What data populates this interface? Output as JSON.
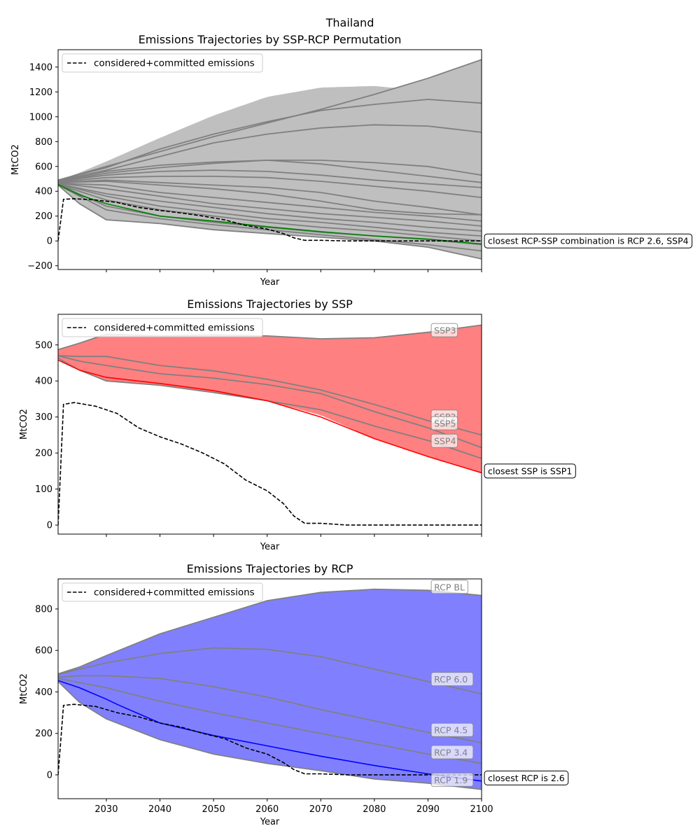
{
  "suptitle": "Thailand",
  "colors": {
    "gray_fill": "#bfbfbf",
    "ssp_fill": "#ff8080",
    "rcp_fill": "#8080ff",
    "gray_line": "#808080",
    "permutation_highlight": "#008000",
    "ssp_highlight": "#ff0000",
    "rcp_highlight": "#0000ff",
    "committed": "#000000"
  },
  "chart_data": [
    {
      "type": "line",
      "title": "Emissions Trajectories by SSP-RCP Permutation",
      "xlabel": "Year",
      "ylabel": "MtCO2",
      "xlim": [
        2021,
        2100
      ],
      "ylim": [
        -230,
        1540
      ],
      "yticks": [
        -200,
        0,
        200,
        400,
        600,
        800,
        1000,
        1200,
        1400
      ],
      "legend": {
        "label": "considered+committed emissions",
        "location": "upper-left"
      },
      "band": {
        "x": [
          2021,
          2025,
          2030,
          2040,
          2050,
          2060,
          2070,
          2080,
          2090,
          2100
        ],
        "upper": [
          485,
          550,
          640,
          830,
          1010,
          1160,
          1235,
          1248,
          1205,
          1110
        ],
        "upper_extended": [
          485,
          540,
          600,
          720,
          840,
          950,
          1060,
          1180,
          1310,
          1460
        ],
        "lower": [
          450,
          300,
          165,
          140,
          90,
          60,
          30,
          0,
          -50,
          -145
        ]
      },
      "series": [
        {
          "x": [
            2021,
            2030,
            2040,
            2050,
            2060,
            2070,
            2080,
            2090,
            2100
          ],
          "values": [
            490,
            600,
            720,
            840,
            950,
            1060,
            1180,
            1310,
            1460
          ]
        },
        {
          "x": [
            2021,
            2030,
            2040,
            2050,
            2060,
            2070,
            2080,
            2090,
            2100
          ],
          "values": [
            490,
            590,
            740,
            860,
            960,
            1050,
            1100,
            1140,
            1110
          ]
        },
        {
          "x": [
            2021,
            2030,
            2040,
            2050,
            2060,
            2070,
            2080,
            2090,
            2100
          ],
          "values": [
            485,
            570,
            680,
            790,
            860,
            910,
            935,
            925,
            875
          ]
        },
        {
          "x": [
            2021,
            2030,
            2040,
            2050,
            2060,
            2070,
            2080,
            2090,
            2100
          ],
          "values": [
            485,
            560,
            610,
            635,
            650,
            650,
            630,
            600,
            530
          ]
        },
        {
          "x": [
            2021,
            2030,
            2040,
            2050,
            2060,
            2070,
            2080,
            2090,
            2100
          ],
          "values": [
            480,
            545,
            590,
            625,
            650,
            620,
            570,
            520,
            470
          ]
        },
        {
          "x": [
            2021,
            2030,
            2040,
            2050,
            2060,
            2070,
            2080,
            2090,
            2100
          ],
          "values": [
            480,
            530,
            560,
            570,
            560,
            530,
            490,
            460,
            430
          ]
        },
        {
          "x": [
            2021,
            2030,
            2040,
            2050,
            2060,
            2070,
            2080,
            2090,
            2100
          ],
          "values": [
            475,
            510,
            520,
            520,
            510,
            480,
            440,
            400,
            350
          ]
        },
        {
          "x": [
            2021,
            2030,
            2040,
            2050,
            2060,
            2070,
            2080,
            2090,
            2100
          ],
          "values": [
            470,
            490,
            470,
            450,
            430,
            390,
            320,
            270,
            210
          ]
        },
        {
          "x": [
            2021,
            2030,
            2040,
            2050,
            2060,
            2070,
            2080,
            2090,
            2100
          ],
          "values": [
            470,
            480,
            450,
            420,
            380,
            320,
            250,
            220,
            210
          ]
        },
        {
          "x": [
            2021,
            2030,
            2040,
            2050,
            2060,
            2070,
            2080,
            2090,
            2100
          ],
          "values": [
            465,
            450,
            390,
            350,
            310,
            270,
            230,
            200,
            160
          ]
        },
        {
          "x": [
            2021,
            2030,
            2040,
            2050,
            2060,
            2070,
            2080,
            2090,
            2100
          ],
          "values": [
            465,
            420,
            360,
            300,
            260,
            220,
            190,
            160,
            120
          ]
        },
        {
          "x": [
            2021,
            2030,
            2040,
            2050,
            2060,
            2070,
            2080,
            2090,
            2100
          ],
          "values": [
            460,
            380,
            320,
            270,
            220,
            180,
            150,
            110,
            80
          ]
        },
        {
          "x": [
            2021,
            2030,
            2040,
            2050,
            2060,
            2070,
            2080,
            2090,
            2100
          ],
          "values": [
            460,
            360,
            280,
            230,
            180,
            150,
            110,
            70,
            40
          ]
        },
        {
          "x": [
            2021,
            2030,
            2040,
            2050,
            2060,
            2070,
            2080,
            2090,
            2100
          ],
          "values": [
            455,
            330,
            250,
            200,
            150,
            110,
            80,
            40,
            0
          ]
        },
        {
          "x": [
            2021,
            2030,
            2040,
            2050,
            2060,
            2070,
            2080,
            2090,
            2100
          ],
          "values": [
            455,
            280,
            200,
            150,
            110,
            70,
            40,
            10,
            -30
          ]
        },
        {
          "x": [
            2021,
            2030,
            2040,
            2050,
            2060,
            2070,
            2080,
            2090,
            2100
          ],
          "values": [
            450,
            250,
            180,
            130,
            90,
            50,
            10,
            -30,
            -80
          ]
        },
        {
          "x": [
            2021,
            2025,
            2030,
            2040,
            2050,
            2060,
            2070,
            2080,
            2090,
            2100
          ],
          "values": [
            450,
            300,
            170,
            140,
            90,
            60,
            30,
            0,
            -50,
            -145
          ]
        }
      ],
      "highlight": {
        "x": [
          2021,
          2025,
          2030,
          2040,
          2050,
          2060,
          2070,
          2080,
          2090,
          2100
        ],
        "values": [
          455,
          370,
          300,
          200,
          160,
          115,
          75,
          40,
          15,
          -25
        ]
      },
      "committed": {
        "x": [
          2021,
          2022,
          2024,
          2028,
          2032,
          2036,
          2040,
          2044,
          2048,
          2052,
          2056,
          2060,
          2063,
          2065,
          2067,
          2070,
          2075,
          2080,
          2100
        ],
        "values": [
          0,
          335,
          340,
          330,
          310,
          270,
          245,
          225,
          200,
          170,
          125,
          95,
          60,
          25,
          5,
          5,
          0,
          0,
          0
        ]
      },
      "annotations": [
        {
          "text": "closest RCP-SSP combination is RCP 2.6, SSP4",
          "x": 2100,
          "y": 0,
          "style": "callout"
        }
      ]
    },
    {
      "type": "line",
      "title": "Emissions Trajectories by SSP",
      "xlabel": "Year",
      "ylabel": "MtCO2",
      "xlim": [
        2021,
        2100
      ],
      "ylim": [
        -25,
        585
      ],
      "yticks": [
        0,
        100,
        200,
        300,
        400,
        500
      ],
      "legend": {
        "label": "considered+committed emissions",
        "location": "upper-left"
      },
      "band": {
        "x": [
          2021,
          2025,
          2030,
          2040,
          2050,
          2060,
          2070,
          2080,
          2090,
          2100
        ],
        "upper": [
          487,
          505,
          530,
          525,
          528,
          525,
          517,
          520,
          535,
          555
        ],
        "lower": [
          463,
          430,
          400,
          388,
          368,
          345,
          305,
          240,
          190,
          145
        ]
      },
      "series": [
        {
          "name": "SSP3",
          "x": [
            2021,
            2025,
            2030,
            2040,
            2050,
            2060,
            2070,
            2080,
            2090,
            2100
          ],
          "values": [
            487,
            505,
            530,
            525,
            528,
            525,
            517,
            520,
            535,
            555
          ]
        },
        {
          "name": "SSP2",
          "x": [
            2021,
            2025,
            2030,
            2040,
            2050,
            2060,
            2070,
            2080,
            2090,
            2100
          ],
          "values": [
            470,
            468,
            468,
            443,
            428,
            405,
            375,
            335,
            290,
            250
          ]
        },
        {
          "name": "SSP5",
          "x": [
            2021,
            2025,
            2030,
            2040,
            2050,
            2060,
            2070,
            2080,
            2090,
            2100
          ],
          "values": [
            470,
            455,
            443,
            420,
            408,
            390,
            365,
            315,
            270,
            215
          ]
        },
        {
          "name": "SSP4",
          "x": [
            2021,
            2025,
            2030,
            2040,
            2050,
            2060,
            2070,
            2080,
            2090,
            2100
          ],
          "values": [
            463,
            430,
            400,
            388,
            368,
            345,
            320,
            275,
            235,
            185
          ]
        }
      ],
      "highlight": {
        "name": "SSP1",
        "x": [
          2021,
          2025,
          2030,
          2040,
          2050,
          2060,
          2070,
          2080,
          2090,
          2100
        ],
        "values": [
          458,
          430,
          410,
          393,
          373,
          345,
          300,
          240,
          190,
          145
        ]
      },
      "committed": {
        "x": [
          2021,
          2022,
          2024,
          2028,
          2032,
          2036,
          2040,
          2044,
          2048,
          2052,
          2056,
          2060,
          2063,
          2065,
          2067,
          2070,
          2075,
          2080,
          2100
        ],
        "values": [
          0,
          335,
          340,
          330,
          310,
          270,
          245,
          225,
          200,
          170,
          125,
          95,
          60,
          25,
          5,
          5,
          0,
          0,
          0
        ]
      },
      "labels": [
        {
          "text": "SSP3",
          "x": 2091,
          "y": 540
        },
        {
          "text": "SSP2",
          "x": 2091,
          "y": 300
        },
        {
          "text": "SSP5",
          "x": 2091,
          "y": 282
        },
        {
          "text": "SSP4",
          "x": 2091,
          "y": 233
        }
      ],
      "annotations": [
        {
          "text": "closest SSP is SSP1",
          "x": 2100,
          "y": 150,
          "style": "callout"
        }
      ]
    },
    {
      "type": "line",
      "title": "Emissions Trajectories by RCP",
      "xlabel": "Year",
      "ylabel": "MtCO2",
      "xlim": [
        2021,
        2100
      ],
      "ylim": [
        -115,
        945
      ],
      "xticks": [
        2030,
        2040,
        2050,
        2060,
        2070,
        2080,
        2090,
        2100
      ],
      "yticks": [
        0,
        200,
        400,
        600,
        800
      ],
      "legend": {
        "label": "considered+committed emissions",
        "location": "upper-left"
      },
      "band": {
        "x": [
          2021,
          2025,
          2030,
          2040,
          2050,
          2060,
          2070,
          2080,
          2090,
          2100
        ],
        "upper": [
          487,
          520,
          575,
          680,
          760,
          840,
          880,
          895,
          890,
          865
        ],
        "lower": [
          450,
          350,
          270,
          170,
          100,
          55,
          20,
          -20,
          -40,
          -70
        ]
      },
      "series": [
        {
          "name": "RCP BL",
          "x": [
            2021,
            2025,
            2030,
            2040,
            2050,
            2060,
            2070,
            2080,
            2090,
            2100
          ],
          "values": [
            487,
            520,
            575,
            680,
            760,
            840,
            880,
            895,
            890,
            865
          ]
        },
        {
          "name": "RCP 6.0",
          "x": [
            2021,
            2025,
            2030,
            2040,
            2050,
            2060,
            2070,
            2080,
            2090,
            2100
          ],
          "values": [
            485,
            510,
            540,
            585,
            612,
            605,
            570,
            510,
            450,
            390
          ]
        },
        {
          "name": "RCP 4.5",
          "x": [
            2021,
            2025,
            2030,
            2040,
            2050,
            2060,
            2070,
            2080,
            2090,
            2100
          ],
          "values": [
            470,
            478,
            478,
            465,
            425,
            375,
            315,
            260,
            205,
            155
          ]
        },
        {
          "name": "RCP 3.4",
          "x": [
            2021,
            2025,
            2030,
            2040,
            2050,
            2060,
            2070,
            2080,
            2090,
            2100
          ],
          "values": [
            465,
            445,
            420,
            355,
            300,
            250,
            200,
            150,
            100,
            55
          ]
        },
        {
          "name": "RCP 1.9",
          "x": [
            2021,
            2025,
            2030,
            2040,
            2050,
            2060,
            2070,
            2080,
            2090,
            2100
          ],
          "values": [
            450,
            350,
            270,
            170,
            100,
            55,
            20,
            -20,
            -40,
            -70
          ]
        }
      ],
      "highlight": {
        "name": "RCP 2.6",
        "x": [
          2021,
          2025,
          2030,
          2032,
          2040,
          2050,
          2060,
          2070,
          2080,
          2090,
          2100
        ],
        "values": [
          455,
          420,
          365,
          340,
          250,
          190,
          140,
          90,
          45,
          5,
          -30
        ]
      },
      "committed": {
        "x": [
          2021,
          2022,
          2024,
          2028,
          2032,
          2036,
          2040,
          2044,
          2048,
          2052,
          2056,
          2060,
          2063,
          2065,
          2067,
          2070,
          2075,
          2080,
          2100
        ],
        "values": [
          0,
          335,
          340,
          330,
          300,
          280,
          250,
          230,
          200,
          175,
          130,
          100,
          60,
          25,
          5,
          5,
          0,
          0,
          0
        ]
      },
      "labels": [
        {
          "text": "RCP BL",
          "x": 2091,
          "y": 905
        },
        {
          "text": "RCP 6.0",
          "x": 2091,
          "y": 460
        },
        {
          "text": "RCP 4.5",
          "x": 2091,
          "y": 215
        },
        {
          "text": "RCP 3.4",
          "x": 2091,
          "y": 108
        },
        {
          "text": "RCP 1.9",
          "x": 2091,
          "y": -25
        }
      ],
      "annotations": [
        {
          "text": "closest RCP is 2.6",
          "x": 2100,
          "y": -15,
          "style": "callout"
        }
      ]
    }
  ]
}
